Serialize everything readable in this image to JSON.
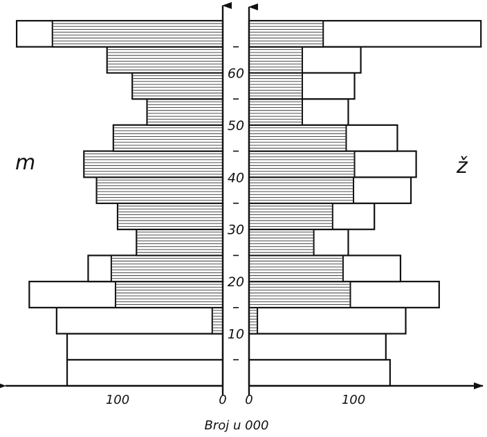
{
  "chart_data": {
    "type": "bar",
    "orientation": "horizontal population pyramid",
    "title": "",
    "left_label": "m",
    "right_label": "ž",
    "xlabel": "Broj u 000",
    "ylabel": "",
    "age_groups": [
      "0-4",
      "5-9",
      "10-14",
      "15-19",
      "20-24",
      "25-29",
      "30-34",
      "35-39",
      "40-44",
      "45-49",
      "50-54",
      "55-59",
      "60-64",
      "65+"
    ],
    "age_tick_labels": [
      "10",
      "20",
      "30",
      "40",
      "50",
      "60"
    ],
    "age_ticks": [
      10,
      20,
      30,
      40,
      50,
      60
    ],
    "age_minor_ticks": [
      5,
      15,
      25,
      35,
      45,
      55,
      65
    ],
    "age_range": [
      0,
      70
    ],
    "x_tick_labels_left": [
      "100",
      "0"
    ],
    "x_tick_values_left": [
      100,
      0
    ],
    "x_tick_labels_right": [
      "0",
      "100"
    ],
    "x_tick_values_right": [
      0,
      100
    ],
    "x_range": [
      0,
      200
    ],
    "legend": "none",
    "series": [
      {
        "side": "male",
        "pattern": "hatched",
        "values": [
          0,
          0,
          10,
          102,
          106,
          82,
          100,
          120,
          132,
          104,
          72,
          86,
          110,
          162
        ]
      },
      {
        "side": "male",
        "pattern": "outline",
        "values": [
          148,
          148,
          158,
          184,
          128,
          82,
          100,
          120,
          132,
          104,
          72,
          86,
          110,
          196
        ]
      },
      {
        "side": "female",
        "pattern": "hatched",
        "values": [
          0,
          0,
          8,
          97,
          90,
          62,
          80,
          100,
          101,
          93,
          51,
          51,
          51,
          71
        ]
      },
      {
        "side": "female",
        "pattern": "outline",
        "values": [
          135,
          131,
          150,
          182,
          145,
          95,
          120,
          155,
          160,
          142,
          95,
          101,
          107,
          222
        ]
      }
    ]
  }
}
